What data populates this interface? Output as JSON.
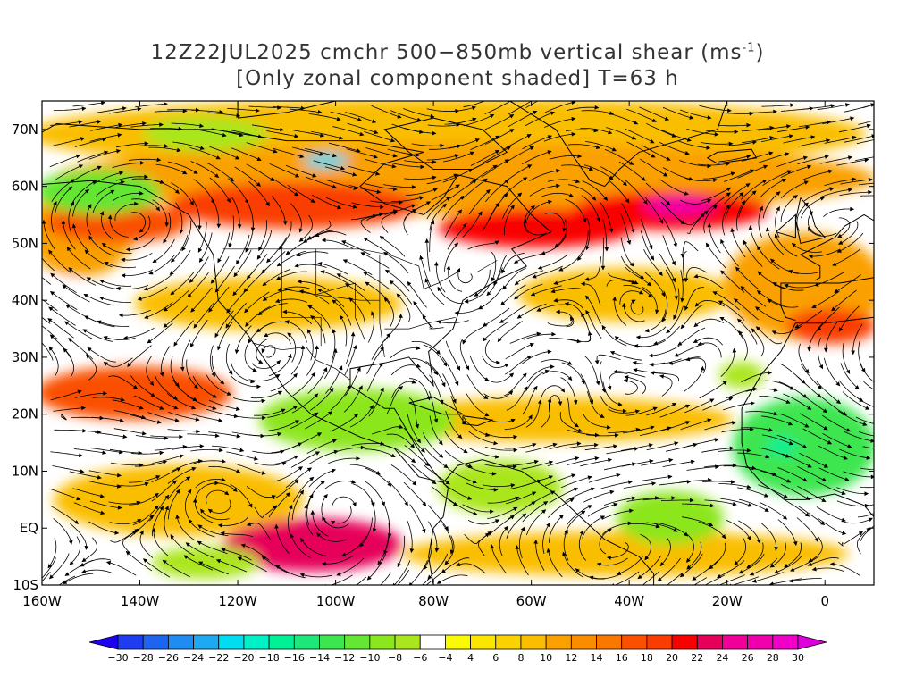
{
  "title": {
    "line1_main": "12Z22JUL2025 cmchr 500−850mb vertical shear (ms",
    "line1_sup": "-1",
    "line1_end": ")",
    "line2": "[Only zonal component shaded] T=63 h"
  },
  "axes": {
    "lat_labels": [
      "70N",
      "60N",
      "50N",
      "40N",
      "30N",
      "20N",
      "10N",
      "EQ",
      "10S"
    ],
    "lon_labels": [
      "160W",
      "140W",
      "120W",
      "100W",
      "80W",
      "60W",
      "40W",
      "20W",
      "0"
    ]
  },
  "colorbar": {
    "labels": [
      "−30",
      "−28",
      "−26",
      "−24",
      "−22",
      "−20",
      "−18",
      "−16",
      "−14",
      "−12",
      "−10",
      "−8",
      "−6",
      "−4",
      "4",
      "6",
      "8",
      "10",
      "12",
      "14",
      "16",
      "18",
      "20",
      "22",
      "24",
      "26",
      "28",
      "30"
    ],
    "colors": [
      "#1e00f0",
      "#1f3cf0",
      "#1e64f0",
      "#1e8cf0",
      "#1eaaf0",
      "#00dcf0",
      "#00f0c8",
      "#00f096",
      "#1ee678",
      "#3ce650",
      "#64e632",
      "#8ce61e",
      "#aae61e",
      "#ffffff",
      "#fafa00",
      "#fae600",
      "#fad200",
      "#fabe00",
      "#faa000",
      "#fa8c00",
      "#fa7800",
      "#fa5000",
      "#fa3c00",
      "#fa0000",
      "#e6005a",
      "#f00096",
      "#f000aa",
      "#f000c8",
      "#dc00dc"
    ]
  },
  "map": {
    "lon_range": [
      -160,
      10
    ],
    "lat_range": [
      -10,
      75
    ],
    "shading_units": "ms-1",
    "regions": [
      {
        "name": "north-pacific-jet",
        "value": 16
      },
      {
        "name": "canada-jet",
        "value": 18
      },
      {
        "name": "north-atlantic-jet",
        "value": 20
      },
      {
        "name": "atlantic-jet-core",
        "value": 26
      },
      {
        "name": "subtropical-pacific-band",
        "value": 16
      },
      {
        "name": "east-pacific-eq-band",
        "value": 22
      },
      {
        "name": "africa-easterlies",
        "value": -14
      },
      {
        "name": "caribbean-easterlies",
        "value": -10
      },
      {
        "name": "gulf-alaska-easterlies",
        "value": -12
      },
      {
        "name": "arctic-easterlies",
        "value": -22
      }
    ]
  }
}
